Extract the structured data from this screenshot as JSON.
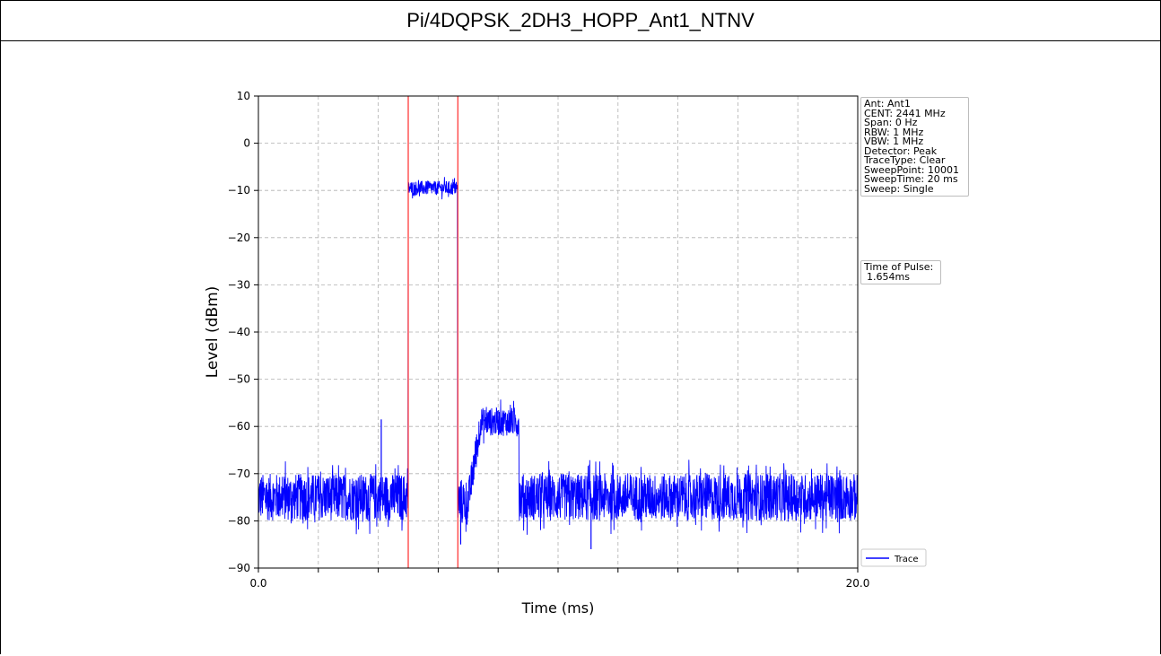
{
  "title": "Pi/4DQPSK_2DH3_HOPP_Ant1_NTNV",
  "info": [
    "Ant: Ant1",
    "CENT: 2441 MHz",
    "Span: 0 Hz",
    "RBW: 1 MHz",
    "VBW: 1 MHz",
    "Detector: Peak",
    "TraceType: Clear",
    "SweepPoint: 10001",
    "SweepTime: 20 ms",
    "Sweep: Single"
  ],
  "pulse_box": {
    "label": "Time of Pulse:",
    "value": "1.654ms"
  },
  "chart_data": {
    "type": "line",
    "xlabel": "Time (ms)",
    "ylabel": "Level (dBm)",
    "xlim": [
      0.0,
      20.0
    ],
    "ylim": [
      -90,
      10
    ],
    "x_tick_labels": [
      "0.0",
      "20.0"
    ],
    "y_ticks": [
      10,
      0,
      -10,
      -20,
      -30,
      -40,
      -50,
      -60,
      -70,
      -80,
      -90
    ],
    "grid": true,
    "legend": {
      "position": "bottom-right",
      "entries": [
        "Trace"
      ]
    },
    "series": [
      {
        "name": "Trace",
        "color": "#0000ff",
        "segments": [
          {
            "x_start": 0.0,
            "x_end": 5.0,
            "level": -75,
            "noise": "random ±5 dB"
          },
          {
            "x_start": 5.0,
            "x_end": 6.65,
            "level": -9.5,
            "noise": "±1.5 dB"
          },
          {
            "x_start": 6.65,
            "x_end": 7.0,
            "level": -76,
            "noise": "±5 dB"
          },
          {
            "x_start": 7.0,
            "x_end": 7.4,
            "level": -68,
            "noise": "ramp"
          },
          {
            "x_start": 7.4,
            "x_end": 8.7,
            "level": -59,
            "noise": "±3 dB"
          },
          {
            "x_start": 8.7,
            "x_end": 20.0,
            "level": -75,
            "noise": "random ±5 dB"
          }
        ],
        "spikes": [
          {
            "x": 4.1,
            "y": -58.5
          },
          {
            "x": 6.75,
            "y": -85
          },
          {
            "x": 11.1,
            "y": -86
          }
        ]
      }
    ],
    "markers": [
      {
        "x": 5.0,
        "color": "#ff0000"
      },
      {
        "x": 6.654,
        "color": "#ff0000"
      }
    ]
  }
}
